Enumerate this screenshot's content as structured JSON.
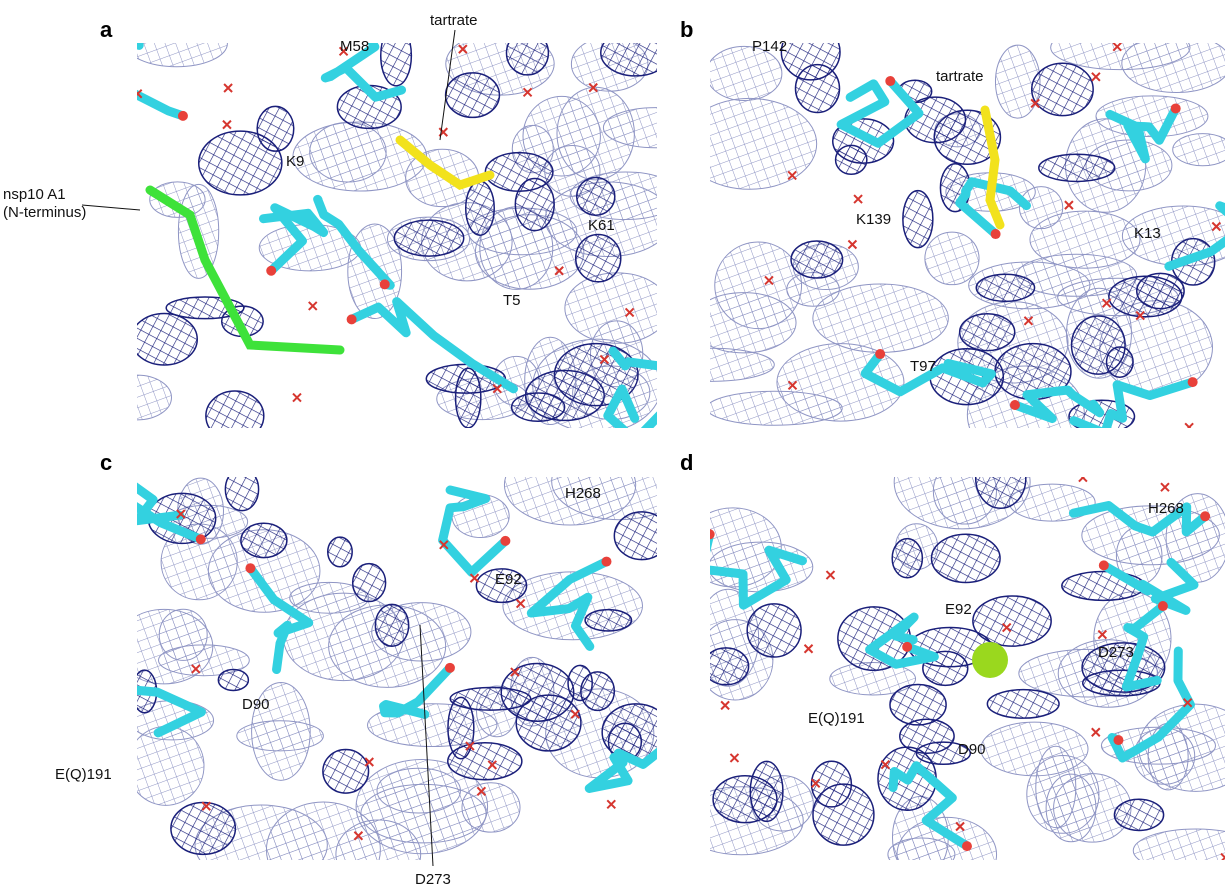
{
  "panels": [
    {
      "letter": "a",
      "labels": [
        "tartrate",
        "M58",
        "K9",
        "nsp10 A1",
        "(N-terminus)",
        "K61",
        "T5"
      ]
    },
    {
      "letter": "b",
      "labels": [
        "P142",
        "tartrate",
        "K139",
        "K13",
        "T97"
      ]
    },
    {
      "letter": "c",
      "labels": [
        "H268",
        "E92",
        "D90",
        "E(Q)191",
        "D273"
      ]
    },
    {
      "letter": "d",
      "labels": [
        "H268",
        "E92",
        "D273",
        "E(Q)191",
        "D90"
      ]
    }
  ]
}
